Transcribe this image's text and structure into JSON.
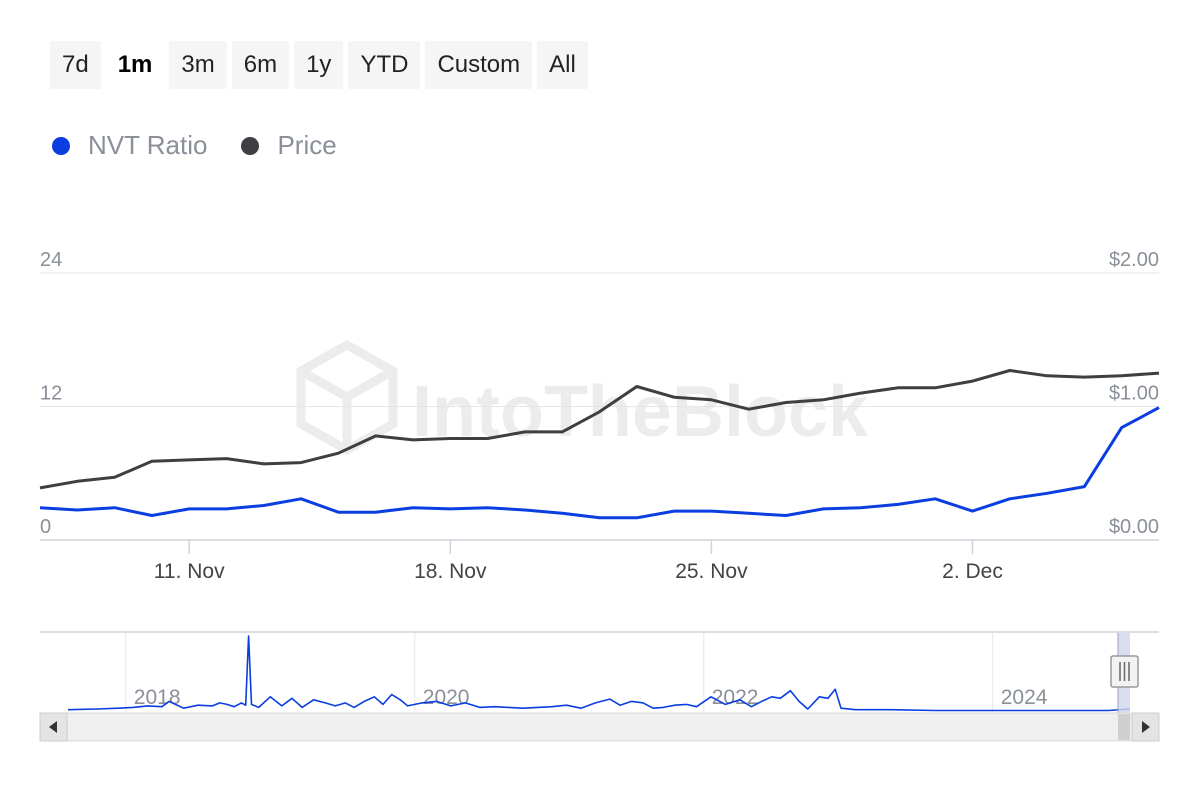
{
  "range_buttons": [
    {
      "label": "7d",
      "active": false
    },
    {
      "label": "1m",
      "active": true
    },
    {
      "label": "3m",
      "active": false
    },
    {
      "label": "6m",
      "active": false
    },
    {
      "label": "1y",
      "active": false
    },
    {
      "label": "YTD",
      "active": false
    },
    {
      "label": "Custom",
      "active": false
    },
    {
      "label": "All",
      "active": false
    }
  ],
  "watermark": "IntoTheBlock",
  "colors": {
    "nvt": "#0a3ee0",
    "price": "#3d3f43",
    "grid": "#e6e6e6",
    "navigator_mask": "#cfd6ea"
  },
  "chart_data": {
    "type": "line",
    "legend": [
      {
        "name": "NVT Ratio",
        "color": "#0a3ee0"
      },
      {
        "name": "Price",
        "color": "#3d3f43"
      }
    ],
    "y_left": {
      "ticks": [
        "0",
        "12",
        "24"
      ],
      "range": [
        0,
        24
      ]
    },
    "y_right": {
      "ticks": [
        "$0.00",
        "$1.00",
        "$2.00"
      ],
      "range": [
        0,
        2
      ]
    },
    "x_range": [
      "2024-11-07",
      "2024-12-07"
    ],
    "x_ticks": [
      {
        "date": "2024-11-11",
        "label": "11. Nov"
      },
      {
        "date": "2024-11-18",
        "label": "18. Nov"
      },
      {
        "date": "2024-11-25",
        "label": "25. Nov"
      },
      {
        "date": "2024-12-02",
        "label": "2. Dec"
      }
    ],
    "series": [
      {
        "name": "NVT Ratio",
        "axis": "left",
        "points": [
          [
            "2024-11-07",
            2.9
          ],
          [
            "2024-11-08",
            2.7
          ],
          [
            "2024-11-09",
            2.9
          ],
          [
            "2024-11-10",
            2.2
          ],
          [
            "2024-11-11",
            2.8
          ],
          [
            "2024-11-12",
            2.8
          ],
          [
            "2024-11-13",
            3.1
          ],
          [
            "2024-11-14",
            3.7
          ],
          [
            "2024-11-15",
            2.5
          ],
          [
            "2024-11-16",
            2.5
          ],
          [
            "2024-11-17",
            2.9
          ],
          [
            "2024-11-18",
            2.8
          ],
          [
            "2024-11-19",
            2.9
          ],
          [
            "2024-11-20",
            2.7
          ],
          [
            "2024-11-21",
            2.4
          ],
          [
            "2024-11-22",
            2.0
          ],
          [
            "2024-11-23",
            2.0
          ],
          [
            "2024-11-24",
            2.6
          ],
          [
            "2024-11-25",
            2.6
          ],
          [
            "2024-11-26",
            2.4
          ],
          [
            "2024-11-27",
            2.2
          ],
          [
            "2024-11-28",
            2.8
          ],
          [
            "2024-11-29",
            2.9
          ],
          [
            "2024-11-30",
            3.2
          ],
          [
            "2024-12-01",
            3.7
          ],
          [
            "2024-12-02",
            2.6
          ],
          [
            "2024-12-03",
            3.7
          ],
          [
            "2024-12-04",
            4.2
          ],
          [
            "2024-12-05",
            4.8
          ],
          [
            "2024-12-06",
            10.1
          ],
          [
            "2024-12-07",
            11.9
          ]
        ]
      },
      {
        "name": "Price",
        "axis": "right",
        "points": [
          [
            "2024-11-07",
            0.39
          ],
          [
            "2024-11-08",
            0.44
          ],
          [
            "2024-11-09",
            0.47
          ],
          [
            "2024-11-10",
            0.59
          ],
          [
            "2024-11-11",
            0.6
          ],
          [
            "2024-11-12",
            0.61
          ],
          [
            "2024-11-13",
            0.57
          ],
          [
            "2024-11-14",
            0.58
          ],
          [
            "2024-11-15",
            0.65
          ],
          [
            "2024-11-16",
            0.78
          ],
          [
            "2024-11-17",
            0.75
          ],
          [
            "2024-11-18",
            0.76
          ],
          [
            "2024-11-19",
            0.76
          ],
          [
            "2024-11-20",
            0.81
          ],
          [
            "2024-11-21",
            0.81
          ],
          [
            "2024-11-22",
            0.96
          ],
          [
            "2024-11-23",
            1.15
          ],
          [
            "2024-11-24",
            1.07
          ],
          [
            "2024-11-25",
            1.05
          ],
          [
            "2024-11-26",
            0.98
          ],
          [
            "2024-11-27",
            1.03
          ],
          [
            "2024-11-28",
            1.05
          ],
          [
            "2024-11-29",
            1.1
          ],
          [
            "2024-11-30",
            1.14
          ],
          [
            "2024-12-01",
            1.14
          ],
          [
            "2024-12-02",
            1.19
          ],
          [
            "2024-12-03",
            1.27
          ],
          [
            "2024-12-04",
            1.23
          ],
          [
            "2024-12-05",
            1.22
          ],
          [
            "2024-12-06",
            1.23
          ],
          [
            "2024-12-07",
            1.25
          ]
        ]
      }
    ],
    "navigator": {
      "x_labels": [
        "2018",
        "2020",
        "2022",
        "2024"
      ],
      "x_range_years": [
        2017.6,
        2024.95
      ],
      "label_years": [
        2018,
        2020,
        2022,
        2024
      ],
      "y_range": [
        0,
        100
      ],
      "series": [
        [
          2017.6,
          3
        ],
        [
          2017.8,
          4
        ],
        [
          2017.95,
          5
        ],
        [
          2018.05,
          6
        ],
        [
          2018.15,
          8
        ],
        [
          2018.25,
          7
        ],
        [
          2018.3,
          14
        ],
        [
          2018.4,
          5
        ],
        [
          2018.5,
          9
        ],
        [
          2018.6,
          8
        ],
        [
          2018.65,
          12
        ],
        [
          2018.7,
          10
        ],
        [
          2018.75,
          7
        ],
        [
          2018.8,
          12
        ],
        [
          2018.83,
          9
        ],
        [
          2018.85,
          100
        ],
        [
          2018.87,
          10
        ],
        [
          2018.92,
          6
        ],
        [
          2019.0,
          20
        ],
        [
          2019.08,
          8
        ],
        [
          2019.15,
          18
        ],
        [
          2019.22,
          6
        ],
        [
          2019.3,
          16
        ],
        [
          2019.38,
          12
        ],
        [
          2019.45,
          8
        ],
        [
          2019.52,
          12
        ],
        [
          2019.58,
          6
        ],
        [
          2019.65,
          14
        ],
        [
          2019.72,
          20
        ],
        [
          2019.78,
          10
        ],
        [
          2019.84,
          23
        ],
        [
          2019.9,
          16
        ],
        [
          2019.95,
          8
        ],
        [
          2020.05,
          12
        ],
        [
          2020.15,
          14
        ],
        [
          2020.25,
          8
        ],
        [
          2020.35,
          12
        ],
        [
          2020.45,
          6
        ],
        [
          2020.55,
          7
        ],
        [
          2020.65,
          6
        ],
        [
          2020.75,
          5
        ],
        [
          2020.85,
          6
        ],
        [
          2020.95,
          7
        ],
        [
          2021.05,
          9
        ],
        [
          2021.15,
          5
        ],
        [
          2021.25,
          12
        ],
        [
          2021.35,
          17
        ],
        [
          2021.42,
          9
        ],
        [
          2021.5,
          14
        ],
        [
          2021.58,
          12
        ],
        [
          2021.65,
          5
        ],
        [
          2021.72,
          6
        ],
        [
          2021.8,
          9
        ],
        [
          2021.88,
          10
        ],
        [
          2021.95,
          7
        ],
        [
          2022.05,
          20
        ],
        [
          2022.15,
          10
        ],
        [
          2022.25,
          16
        ],
        [
          2022.33,
          7
        ],
        [
          2022.4,
          14
        ],
        [
          2022.47,
          20
        ],
        [
          2022.53,
          18
        ],
        [
          2022.6,
          28
        ],
        [
          2022.66,
          14
        ],
        [
          2022.72,
          4
        ],
        [
          2022.8,
          20
        ],
        [
          2022.86,
          18
        ],
        [
          2022.91,
          30
        ],
        [
          2022.95,
          5
        ],
        [
          2023.05,
          3
        ],
        [
          2023.3,
          3
        ],
        [
          2023.6,
          2
        ],
        [
          2023.9,
          2
        ],
        [
          2024.2,
          2
        ],
        [
          2024.5,
          2
        ],
        [
          2024.8,
          2
        ],
        [
          2024.95,
          4
        ]
      ]
    }
  }
}
